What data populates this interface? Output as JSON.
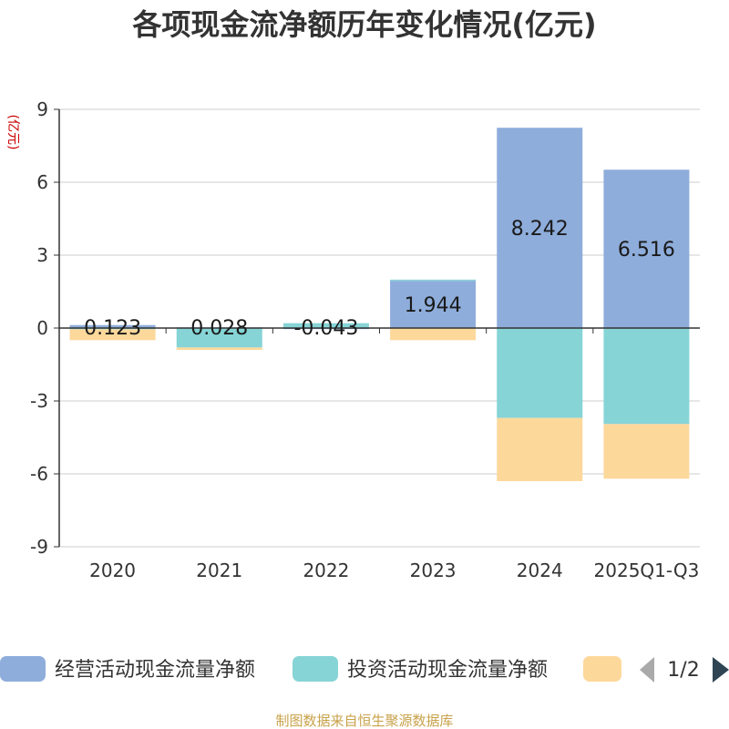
{
  "chart_data": {
    "type": "bar",
    "stacked": true,
    "title": "各项现金流净额历年变化情况(亿元)",
    "ylabel": "(亿元)",
    "ylim": [
      -9,
      9
    ],
    "yticks": [
      9,
      6,
      3,
      0,
      -3,
      -6,
      -9
    ],
    "categories": [
      "2020",
      "2021",
      "2022",
      "2023",
      "2024",
      "2025Q1-Q3"
    ],
    "series": [
      {
        "name": "经营活动现金流量净额",
        "color": "#8eaddb",
        "values": [
          0.123,
          0.028,
          -0.043,
          1.944,
          8.242,
          6.516
        ]
      },
      {
        "name": "投资活动现金流量净额",
        "color": "#86d4d6",
        "values": [
          -0.05,
          -0.8,
          0.2,
          0.05,
          -3.7,
          -3.95
        ]
      },
      {
        "name": "",
        "color": "#fdd89b",
        "values": [
          -0.45,
          -0.1,
          0,
          -0.5,
          -2.6,
          -2.25
        ]
      }
    ],
    "data_labels": [
      "0.123",
      "0.028",
      "-0.043",
      "1.944",
      "8.242",
      "6.516"
    ],
    "legend": {
      "placement": "bottom",
      "page": "1/2"
    },
    "grid": true
  },
  "source": "制图数据来自恒生聚源数据库"
}
